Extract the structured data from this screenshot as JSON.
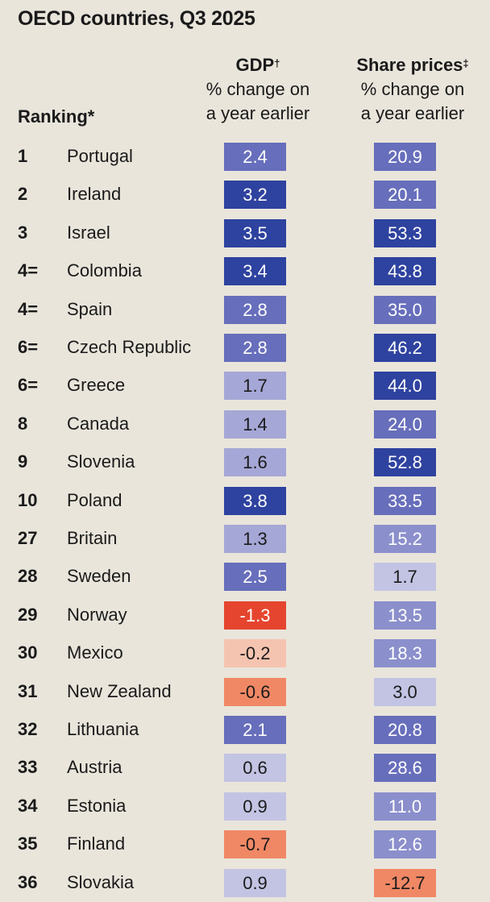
{
  "chart_data": {
    "type": "table",
    "title": "OECD countries, Q3 2025",
    "columns": {
      "ranking": {
        "label": "Ranking",
        "mark": "*"
      },
      "gdp": {
        "label": "GDP",
        "mark": "†",
        "sub1": "% change on",
        "sub2": "a year earlier"
      },
      "share": {
        "label": "Share prices",
        "mark": "‡",
        "sub1": "% change on",
        "sub2": "a year earlier"
      }
    },
    "rows": [
      {
        "rank": "1",
        "country": "Portugal",
        "gdp": 2.4,
        "share": 20.9
      },
      {
        "rank": "2",
        "country": "Ireland",
        "gdp": 3.2,
        "share": 20.1
      },
      {
        "rank": "3",
        "country": "Israel",
        "gdp": 3.5,
        "share": 53.3
      },
      {
        "rank": "4=",
        "country": "Colombia",
        "gdp": 3.4,
        "share": 43.8
      },
      {
        "rank": "4=",
        "country": "Spain",
        "gdp": 2.8,
        "share": 35.0
      },
      {
        "rank": "6=",
        "country": "Czech Republic",
        "gdp": 2.8,
        "share": 46.2
      },
      {
        "rank": "6=",
        "country": "Greece",
        "gdp": 1.7,
        "share": 44.0
      },
      {
        "rank": "8",
        "country": "Canada",
        "gdp": 1.4,
        "share": 24.0
      },
      {
        "rank": "9",
        "country": "Slovenia",
        "gdp": 1.6,
        "share": 52.8
      },
      {
        "rank": "10",
        "country": "Poland",
        "gdp": 3.8,
        "share": 33.5
      },
      {
        "rank": "27",
        "country": "Britain",
        "gdp": 1.3,
        "share": 15.2
      },
      {
        "rank": "28",
        "country": "Sweden",
        "gdp": 2.5,
        "share": 1.7
      },
      {
        "rank": "29",
        "country": "Norway",
        "gdp": -1.3,
        "share": 13.5
      },
      {
        "rank": "30",
        "country": "Mexico",
        "gdp": -0.2,
        "share": 18.3
      },
      {
        "rank": "31",
        "country": "New Zealand",
        "gdp": -0.6,
        "share": 3.0
      },
      {
        "rank": "32",
        "country": "Lithuania",
        "gdp": 2.1,
        "share": 20.8
      },
      {
        "rank": "33",
        "country": "Austria",
        "gdp": 0.6,
        "share": 28.6
      },
      {
        "rank": "34",
        "country": "Estonia",
        "gdp": 0.9,
        "share": 11.0
      },
      {
        "rank": "35",
        "country": "Finland",
        "gdp": -0.7,
        "share": 12.6
      },
      {
        "rank": "36",
        "country": "Slovakia",
        "gdp": 0.9,
        "share": -12.7
      }
    ]
  },
  "colors": {
    "background": "#e9e5db",
    "blue_1": "#c3c4e3",
    "blue_2": "#a5a7d6",
    "blue_3": "#8b8fcc",
    "blue_4": "#676ebb",
    "blue_5": "#2e429f",
    "red_1": "#f5c4b0",
    "red_2": "#f08865",
    "red_3": "#e5452e"
  }
}
